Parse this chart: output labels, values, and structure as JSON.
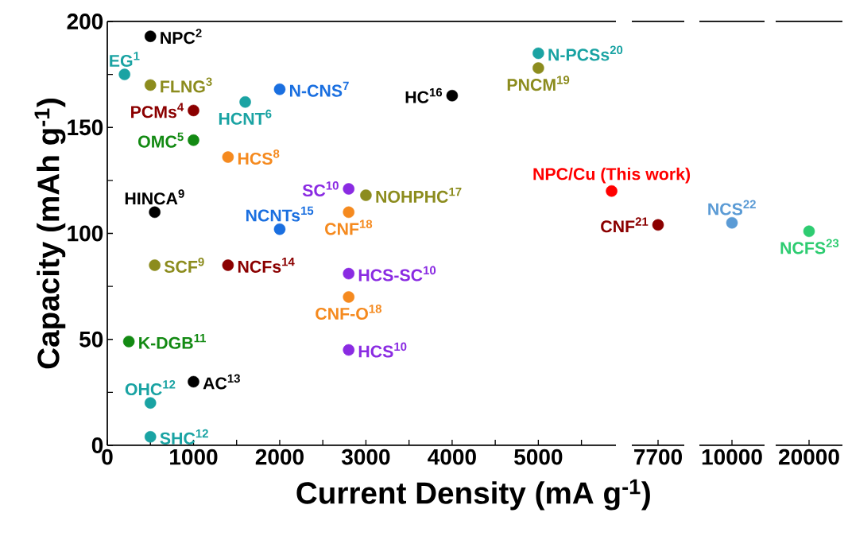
{
  "chart_data": [
    {
      "type": "scatter",
      "marker": "circle",
      "xlabel": "Current Density (mA g$^{-1}$)",
      "ylabel": "Capacity (mAh g$^{-1}$)",
      "xlim": [
        0,
        5900
      ],
      "ylim": [
        0,
        200
      ],
      "xticks": [
        0,
        {
          "value": 500,
          "label": null
        },
        1000,
        {
          "value": 1500,
          "label": null
        },
        2000,
        {
          "value": 2500,
          "label": null
        },
        3000,
        {
          "value": 3500,
          "label": null
        },
        4000,
        {
          "value": 4500,
          "label": null
        },
        5000,
        {
          "value": 5500,
          "label": null
        }
      ],
      "yticks": [
        0,
        {
          "value": 25,
          "label": null
        },
        50,
        {
          "value": 75,
          "label": null
        },
        100,
        {
          "value": 125,
          "label": null
        },
        150,
        {
          "value": 175,
          "label": null
        },
        200
      ],
      "series": [
        {
          "name": "EG$^{1}$",
          "color": "#1aa3a3",
          "x": [
            200
          ],
          "values": [
            175
          ]
        },
        {
          "name": "NPC$^{2}$",
          "color": "#000000",
          "x": [
            500
          ],
          "values": [
            193
          ]
        },
        {
          "name": "FLNG$^{3}$",
          "color": "#8c8c1e",
          "x": [
            500
          ],
          "values": [
            170
          ]
        },
        {
          "name": "PCMs$^{4}$",
          "color": "#8b0000",
          "x": [
            1000
          ],
          "values": [
            158
          ]
        },
        {
          "name": "OMC$^{5}$",
          "color": "#138a13",
          "x": [
            1000
          ],
          "values": [
            144
          ]
        },
        {
          "name": "HCNT$^{6}$",
          "color": "#1aa3a3",
          "x": [
            1600
          ],
          "values": [
            162
          ]
        },
        {
          "name": "N-CNS$^{7}$",
          "color": "#1a6fe0",
          "x": [
            2000
          ],
          "values": [
            168
          ]
        },
        {
          "name": "HCS$^{8}$",
          "color": "#f58a1f",
          "x": [
            1400
          ],
          "values": [
            136
          ]
        },
        {
          "name": "HINCA$^{9}$",
          "color": "#000000",
          "x": [
            550
          ],
          "values": [
            110
          ]
        },
        {
          "name": "SCF$^{9}$",
          "color": "#8c8c1e",
          "x": [
            550
          ],
          "values": [
            85
          ]
        },
        {
          "name": "K-DGB$^{11}$",
          "color": "#138a13",
          "x": [
            250
          ],
          "values": [
            49
          ]
        },
        {
          "name": "OHC$^{12}$",
          "color": "#1aa3a3",
          "x": [
            500
          ],
          "values": [
            20
          ]
        },
        {
          "name": "AC$^{13}$",
          "color": "#000000",
          "x": [
            1000
          ],
          "values": [
            30
          ]
        },
        {
          "name": "SHC$^{12}$",
          "color": "#1aa3a3",
          "x": [
            500
          ],
          "values": [
            4
          ]
        },
        {
          "name": "NCFs$^{14}$",
          "color": "#8b0000",
          "x": [
            1400
          ],
          "values": [
            85
          ]
        },
        {
          "name": "NCNTs$^{15}$",
          "color": "#1a6fe0",
          "x": [
            2000
          ],
          "values": [
            102
          ]
        },
        {
          "name": "SC$^{10}$",
          "color": "#8a2be2",
          "x": [
            2800
          ],
          "values": [
            121
          ]
        },
        {
          "name": "HCS-SC$^{10}$",
          "color": "#8a2be2",
          "x": [
            2800
          ],
          "values": [
            81
          ]
        },
        {
          "name": "CNF$^{18}$",
          "color": "#f58a1f",
          "x": [
            2800
          ],
          "values": [
            110
          ]
        },
        {
          "name": "CNF-O$^{18}$",
          "color": "#f58a1f",
          "x": [
            2800
          ],
          "values": [
            70
          ]
        },
        {
          "name": "HCS$^{10}$",
          "color": "#8a2be2",
          "x": [
            2800
          ],
          "values": [
            45
          ]
        },
        {
          "name": "HC$^{16}$",
          "color": "#000000",
          "x": [
            4000
          ],
          "values": [
            165
          ]
        },
        {
          "name": "NOHPHC$^{17}$",
          "color": "#8c8c1e",
          "x": [
            3000
          ],
          "values": [
            118
          ]
        },
        {
          "name": "PNCM$^{19}$",
          "color": "#8c8c1e",
          "x": [
            5000
          ],
          "values": [
            178
          ]
        },
        {
          "name": "N-PCSs$^{20}$",
          "color": "#1aa3a3",
          "x": [
            5000
          ],
          "values": [
            185
          ]
        },
        {
          "name": "NPC/Cu (This work)",
          "color": "#ff0000",
          "x": [
            5850
          ],
          "values": [
            120
          ]
        }
      ]
    },
    {
      "type": "scatter",
      "marker": "circle",
      "categories": [
        "7700"
      ],
      "ylim": [
        0,
        200
      ],
      "tick_labels": "x",
      "series": [
        {
          "name": "CNF$^{21}$",
          "color": "#8b0000",
          "values": [
            104
          ]
        }
      ]
    },
    {
      "type": "scatter",
      "marker": "circle",
      "categories": [
        "10000"
      ],
      "ylim": [
        0,
        200
      ],
      "tick_labels": "x",
      "series": [
        {
          "name": "NCS$^{22}$",
          "color": "#5b9bd5",
          "values": [
            105
          ]
        }
      ]
    },
    {
      "type": "scatter",
      "marker": "circle",
      "categories": [
        "20000"
      ],
      "ylim": [
        0,
        200
      ],
      "tick_labels": "x",
      "series": [
        {
          "name": "NCFS$^{23}$",
          "color": "#2ecc71",
          "values": [
            101
          ]
        }
      ]
    }
  ]
}
